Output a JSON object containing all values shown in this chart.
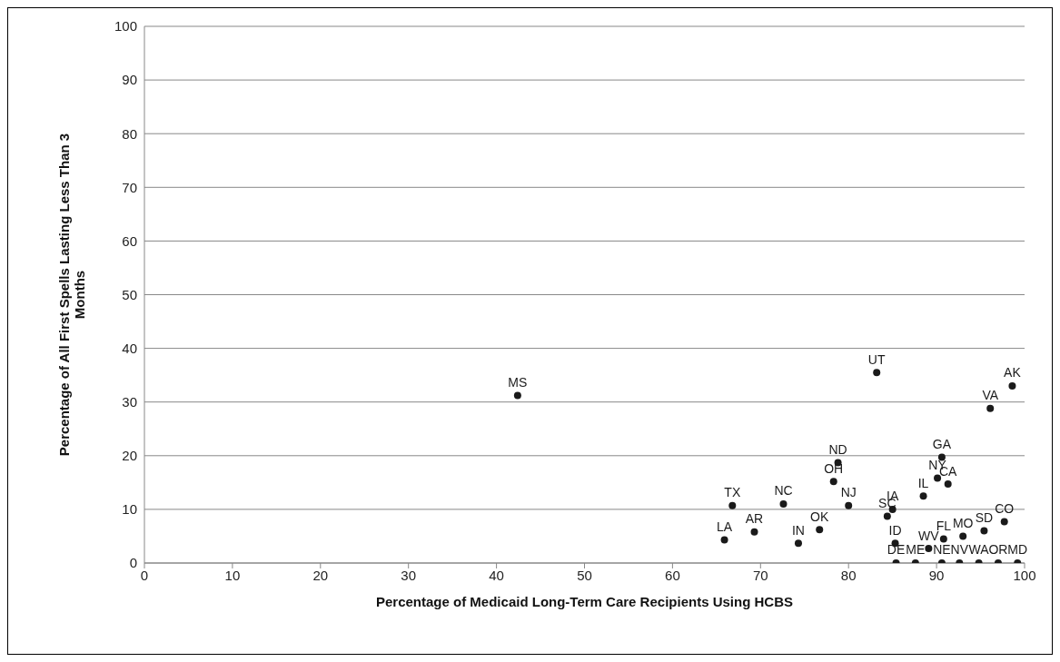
{
  "chart_data": {
    "type": "scatter",
    "xlabel": "Percentage of Medicaid Long-Term Care Recipients Using  HCBS",
    "ylabel": "Percentage of All First  Spells Lasting Less Than 3 Months",
    "x": [
      42.4,
      83.2,
      98.6,
      96.1,
      90.6,
      78.8,
      78.3,
      90.1,
      91.3,
      88.5,
      66.8,
      72.6,
      80.0,
      85.0,
      84.4,
      97.7,
      95.4,
      93.0,
      90.8,
      89.1,
      85.3,
      76.7,
      74.3,
      69.3,
      65.9,
      85.4,
      87.6,
      90.6,
      92.6,
      94.8,
      97.0,
      99.2
    ],
    "values": [
      31.2,
      35.5,
      33.0,
      28.8,
      19.7,
      18.7,
      15.2,
      15.8,
      14.7,
      12.5,
      10.7,
      11.0,
      10.7,
      10.0,
      8.7,
      7.7,
      6.0,
      5.0,
      4.5,
      2.7,
      3.7,
      6.2,
      3.7,
      5.8,
      4.3,
      0,
      0,
      0,
      0,
      0,
      0,
      0
    ],
    "value_labels": [
      "MS",
      "UT",
      "AK",
      "VA",
      "GA",
      "ND",
      "OH",
      "NY",
      "CA",
      "IL",
      "TX",
      "NC",
      "NJ",
      "IA",
      "SC",
      "CO",
      "SD",
      "MO",
      "FL",
      "WV",
      "ID",
      "OK",
      "IN",
      "AR",
      "LA",
      "DE",
      "ME",
      "NE",
      "NV",
      "WA",
      "OR",
      "MD"
    ],
    "color": "#1a1a1a",
    "marker": "circle",
    "xlim": [
      0,
      100
    ],
    "xticks": [
      0,
      10,
      20,
      30,
      40,
      50,
      60,
      70,
      80,
      90,
      100
    ],
    "ylim": [
      0,
      100
    ],
    "yticks": [
      0,
      10,
      20,
      30,
      40,
      50,
      60,
      70,
      80,
      90,
      100
    ],
    "grid": "y",
    "legend": false
  }
}
